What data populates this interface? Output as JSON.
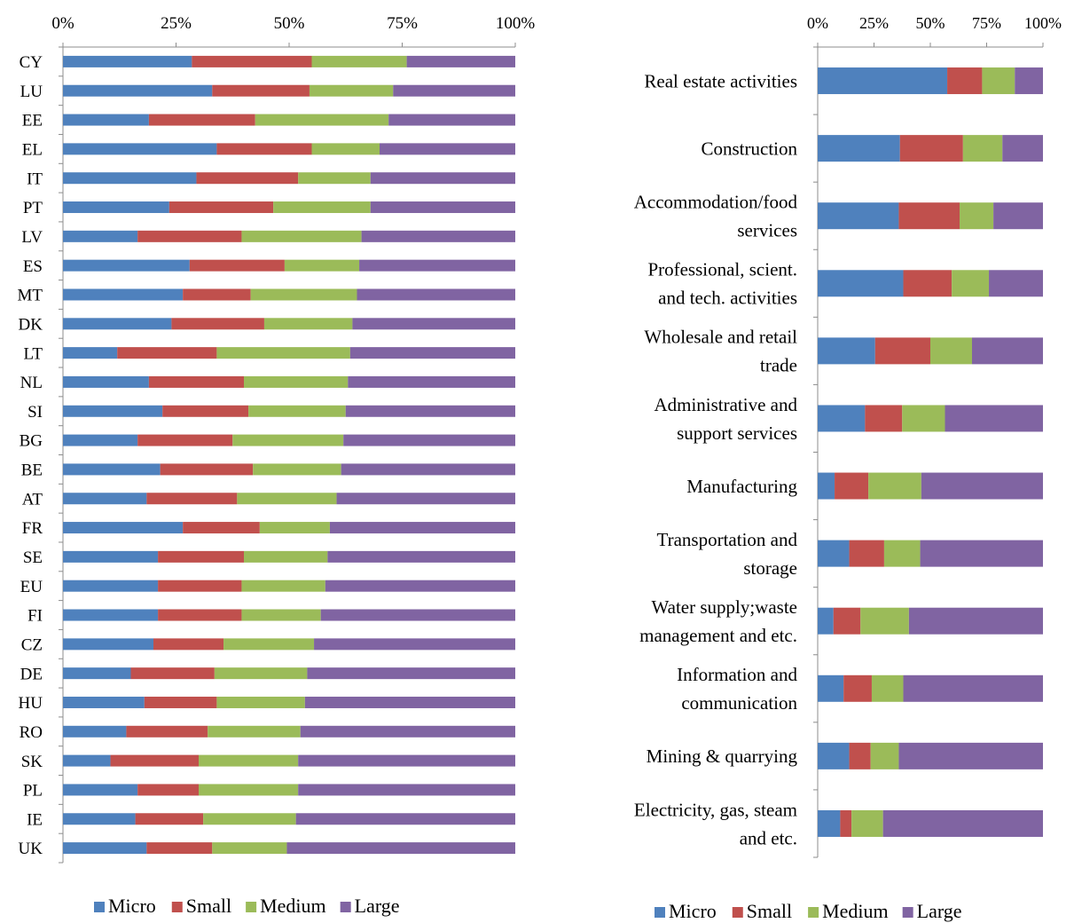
{
  "chart_data": [
    {
      "type": "bar",
      "orientation": "horizontal",
      "stacked": "percent",
      "xlim": [
        0,
        100
      ],
      "tick_labels": [
        "0%",
        "25%",
        "50%",
        "75%",
        "100%"
      ],
      "grid": false,
      "legend_position": "bottom",
      "categories": [
        "CY",
        "LU",
        "EE",
        "EL",
        "IT",
        "PT",
        "LV",
        "ES",
        "MT",
        "DK",
        "LT",
        "NL",
        "SI",
        "BG",
        "BE",
        "AT",
        "FR",
        "SE",
        "EU",
        "FI",
        "CZ",
        "DE",
        "HU",
        "RO",
        "SK",
        "PL",
        "IE",
        "UK"
      ],
      "series": [
        {
          "name": "Micro",
          "color": "#4F81BD",
          "values": [
            28.5,
            33,
            19,
            34,
            29.5,
            23.5,
            16.5,
            28,
            26.5,
            24,
            12,
            19,
            22,
            16.5,
            21.5,
            18.5,
            26.5,
            21,
            21,
            21,
            20,
            15,
            18,
            14,
            10.5,
            16.5,
            16,
            18.5
          ]
        },
        {
          "name": "Small",
          "color": "#C0504D",
          "values": [
            26.5,
            21.5,
            23.5,
            21,
            22.5,
            23,
            23,
            21,
            15,
            20.5,
            22,
            21,
            19,
            21,
            20.5,
            20,
            17,
            19,
            18.5,
            18.5,
            15.5,
            18.5,
            16,
            18,
            19.5,
            13.5,
            15,
            14.5
          ]
        },
        {
          "name": "Medium",
          "color": "#9BBB59",
          "values": [
            21,
            18.5,
            29.5,
            15,
            16,
            21.5,
            26.5,
            16.5,
            23.5,
            19.5,
            29.5,
            23,
            21.5,
            24.5,
            19.5,
            22,
            15.5,
            18.5,
            18.5,
            17.5,
            20,
            20.5,
            19.5,
            20.5,
            22,
            22,
            20.5,
            16.5
          ]
        },
        {
          "name": "Large",
          "color": "#8064A2",
          "values": [
            24,
            27,
            28,
            30,
            32,
            32,
            34,
            34.5,
            35,
            36,
            36.5,
            37,
            37.5,
            38,
            38.5,
            39.5,
            41,
            41.5,
            42,
            43,
            44.5,
            46,
            46.5,
            47.5,
            48,
            48,
            48.5,
            50.5
          ]
        }
      ]
    },
    {
      "type": "bar",
      "orientation": "horizontal",
      "stacked": "percent",
      "xlim": [
        0,
        100
      ],
      "tick_labels": [
        "0%",
        "25%",
        "50%",
        "75%",
        "100%"
      ],
      "grid": false,
      "legend_position": "bottom",
      "categories": [
        [
          "Real estate activities"
        ],
        [
          "Construction"
        ],
        [
          "Accommodation/food",
          "services"
        ],
        [
          "Professional, scient.",
          "and tech. activities"
        ],
        [
          "Wholesale and retail",
          "trade"
        ],
        [
          "Administrative and",
          "support services"
        ],
        [
          "Manufacturing"
        ],
        [
          "Transportation and",
          "storage"
        ],
        [
          "Water supply;waste",
          "management and etc."
        ],
        [
          "Information and",
          "communication"
        ],
        [
          "Mining & quarrying"
        ],
        [
          "Electricity, gas, steam",
          "and etc."
        ]
      ],
      "series": [
        {
          "name": "Micro",
          "color": "#4F81BD",
          "values": [
            57.5,
            36.5,
            36,
            38,
            25.5,
            21,
            7.5,
            14,
            7,
            11.5,
            14,
            10
          ]
        },
        {
          "name": "Small",
          "color": "#C0504D",
          "values": [
            15.5,
            28,
            27,
            21.5,
            24.5,
            16.5,
            15,
            15.5,
            12,
            12.5,
            9.5,
            5
          ]
        },
        {
          "name": "Medium",
          "color": "#9BBB59",
          "values": [
            14.5,
            17.5,
            15,
            16.5,
            18.5,
            19,
            23.5,
            16,
            21.5,
            14,
            12.5,
            14
          ]
        },
        {
          "name": "Large",
          "color": "#8064A2",
          "values": [
            12.5,
            18,
            22,
            24,
            31.5,
            43.5,
            54,
            54.5,
            59.5,
            62,
            64,
            71
          ]
        }
      ]
    }
  ]
}
